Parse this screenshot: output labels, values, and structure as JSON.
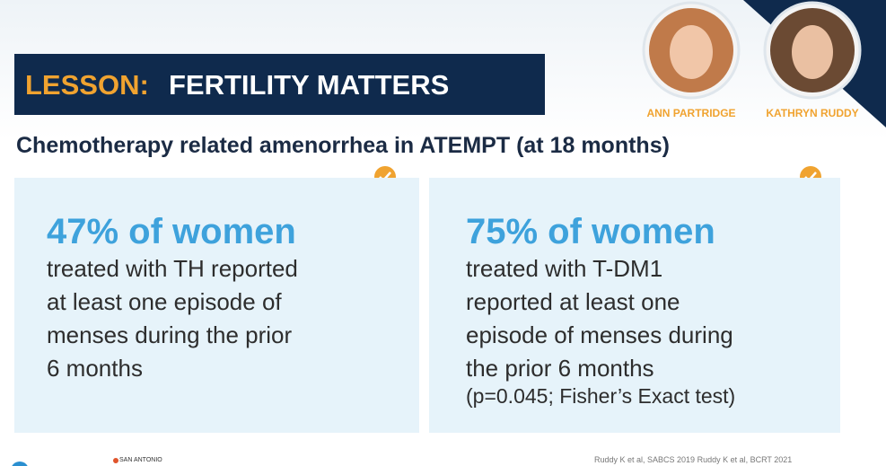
{
  "header": {
    "label": "LESSON:",
    "title": "FERTILITY MATTERS"
  },
  "speakers": [
    {
      "name": "ANN PARTRIDGE"
    },
    {
      "name": "KATHRYN RUDDY"
    }
  ],
  "subtitle": "Chemotherapy related amenorrhea in ATEMPT (at 18 months)",
  "cards": [
    {
      "headline": "47% of women",
      "lines": [
        "treated with TH reported",
        "at least one episode of",
        "menses during the prior",
        "6 months"
      ]
    },
    {
      "headline": "75% of women",
      "lines": [
        "treated with T-DM1",
        "reported at least one",
        "episode of menses during",
        "the prior 6 months"
      ],
      "note": "(p=0.045; Fisher’s Exact test)"
    }
  ],
  "footer": {
    "logo": "SAN ANTONIO",
    "citation": "Ruddy K et al, SABCS 2019 Ruddy K et al, BCRT 2021"
  }
}
